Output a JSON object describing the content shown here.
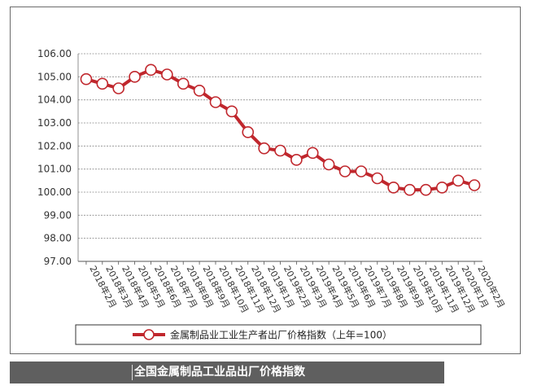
{
  "caption": "全国金属制品工业品出厂价格指数",
  "chart_data": {
    "type": "line",
    "categories": [
      "2018年2月",
      "2018年3月",
      "2018年4月",
      "2018年5月",
      "2018年6月",
      "2018年7月",
      "2018年8月",
      "2018年9月",
      "2018年10月",
      "2018年11月",
      "2018年12月",
      "2019年1月",
      "2019年2月",
      "2019年3月",
      "2019年4月",
      "2019年5月",
      "2019年6月",
      "2019年7月",
      "2019年8月",
      "2019年9月",
      "2019年10月",
      "2019年11月",
      "2019年12月",
      "2020年1月",
      "2020年2月"
    ],
    "series": [
      {
        "name": "金属制品业工业生产者出厂价格指数（上年=100）",
        "values": [
          104.9,
          104.7,
          104.5,
          105.0,
          105.3,
          105.1,
          104.7,
          104.4,
          103.9,
          103.5,
          102.6,
          101.9,
          101.8,
          101.4,
          101.7,
          101.2,
          100.9,
          100.9,
          100.6,
          100.2,
          100.1,
          100.1,
          100.2,
          100.5,
          100.3
        ],
        "color": "#c0272d"
      }
    ],
    "ylim": [
      97.0,
      106.0
    ],
    "yticks": [
      "97.00",
      "98.00",
      "99.00",
      "100.00",
      "101.00",
      "102.00",
      "103.00",
      "104.00",
      "105.00",
      "106.00"
    ],
    "grid": true,
    "legend": "bottom"
  }
}
